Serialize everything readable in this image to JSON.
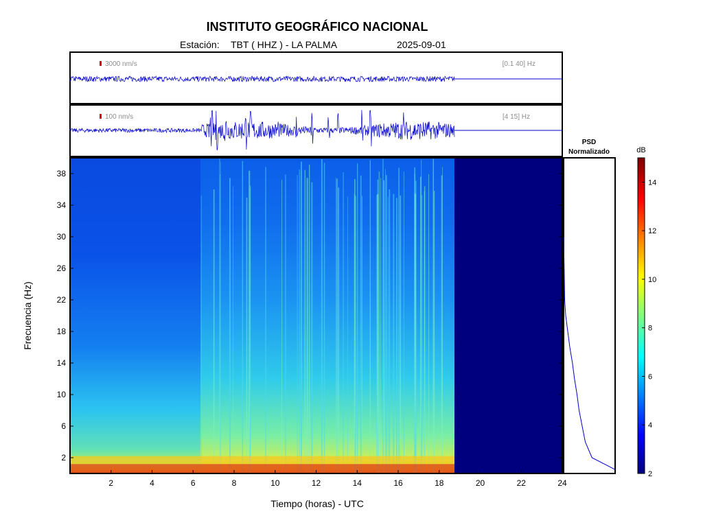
{
  "header": {
    "title": "INSTITUTO GEOGRÁFICO NACIONAL",
    "station_prefix": "Estación:",
    "station": "TBT ( HHZ ) - LA PALMA",
    "date": "2025-09-01"
  },
  "traces": [
    {
      "scale_label": "3000 nm/s",
      "band_label": "[0.1 40] Hz",
      "scale_color": "#dd0000",
      "trace_color": "#0000cc"
    },
    {
      "scale_label": "100 nm/s",
      "band_label": "[4 15] Hz",
      "scale_color": "#dd0000",
      "trace_color": "#0000cc"
    }
  ],
  "psd_panel": {
    "title_line1": "PSD",
    "title_line2": "Normalizado"
  },
  "colorbar": {
    "unit": "dB",
    "ticks": [
      2,
      4,
      6,
      8,
      10,
      12,
      14
    ],
    "range": [
      2,
      15
    ]
  },
  "chart_data": {
    "type": "heatmap",
    "xlabel": "Tiempo (horas) - UTC",
    "ylabel": "Frecuencia  (Hz)",
    "xlim": [
      0,
      24
    ],
    "ylim": [
      0,
      40
    ],
    "xticks": [
      2,
      4,
      6,
      8,
      10,
      12,
      14,
      16,
      18,
      20,
      22,
      24
    ],
    "yticks": [
      2,
      6,
      10,
      14,
      18,
      22,
      26,
      30,
      34,
      38
    ],
    "data_end_hour": 18.75,
    "colormap": "jet",
    "psd_profile": [
      {
        "f": 0.5,
        "v": 1.0
      },
      {
        "f": 2,
        "v": 0.55
      },
      {
        "f": 4,
        "v": 0.42
      },
      {
        "f": 6,
        "v": 0.36
      },
      {
        "f": 8,
        "v": 0.3
      },
      {
        "f": 10,
        "v": 0.26
      },
      {
        "f": 12,
        "v": 0.21
      },
      {
        "f": 14,
        "v": 0.17
      },
      {
        "f": 16,
        "v": 0.12
      },
      {
        "f": 18,
        "v": 0.08
      },
      {
        "f": 20,
        "v": 0.04
      },
      {
        "f": 22,
        "v": 0.02
      },
      {
        "f": 26,
        "v": 0.01
      },
      {
        "f": 30,
        "v": 0.0
      }
    ]
  }
}
